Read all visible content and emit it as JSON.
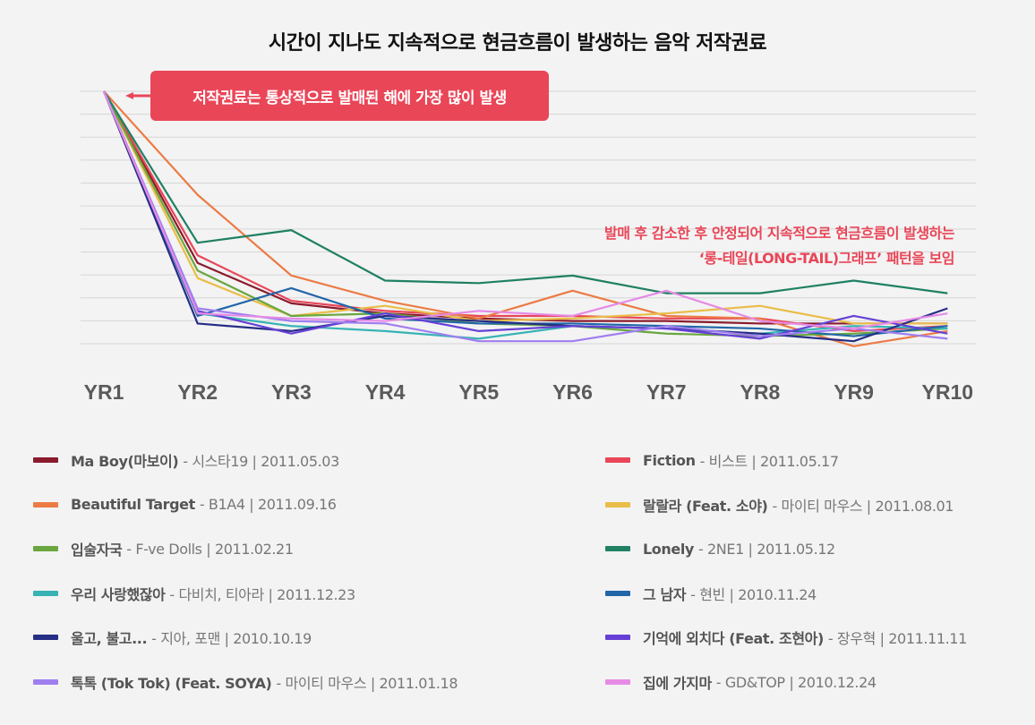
{
  "page": {
    "title": "시간이 지나도 지속적으로 현금흐름이 발생하는 음악 저작권료",
    "callout": "저작권료는 통상적으로 발매된 해에 가장 많이 발생",
    "annotation_line1": "발매 후 감소한 후 안정되어 지속적으로 현금흐름이 발생하는",
    "annotation_line2": "‘롱-테일(LONG-TAIL)그래프’ 패턴을 보임"
  },
  "colors": {
    "background": "#f3f3f3",
    "grid": "#d6d6d6",
    "accent": "#e94658",
    "axis_label": "#5a5a5a"
  },
  "chart_data": {
    "type": "line",
    "title": "시간이 지나도 지속적으로 현금흐름이 발생하는 음악 저작권료",
    "xlabel": "",
    "ylabel": "",
    "x": [
      "YR1",
      "YR2",
      "YR3",
      "YR4",
      "YR5",
      "YR6",
      "YR7",
      "YR8",
      "YR9",
      "YR10"
    ],
    "ylim": [
      0,
      100
    ],
    "y_gridlines": [
      0,
      9.09,
      18.18,
      27.27,
      36.36,
      45.45,
      54.55,
      63.64,
      72.73,
      81.82,
      90.91,
      100
    ],
    "legend_position": "bottom",
    "series": [
      {
        "name": "Ma Boy(마보이)",
        "detail": "- 시스타19 | 2011.05.03",
        "color": "#8b1a2c",
        "values": [
          100,
          32,
          16,
          12,
          10,
          9,
          9,
          8,
          8,
          8
        ]
      },
      {
        "name": "Fiction",
        "detail": "- 비스트 | 2011.05.17",
        "color": "#e94658",
        "values": [
          100,
          35,
          17,
          13,
          11,
          11,
          10,
          10,
          5,
          7
        ]
      },
      {
        "name": "Beautiful Target",
        "detail": "- B1A4 | 2011.09.16",
        "color": "#ec7b45",
        "values": [
          100,
          59,
          27,
          17,
          10,
          21,
          11,
          10,
          -1,
          5
        ]
      },
      {
        "name": "랄랄라 (Feat. 소야)",
        "detail": "- 마이티 마우스 | 2011.08.01",
        "color": "#e9bd47",
        "values": [
          100,
          26,
          11,
          15,
          9,
          10,
          12,
          15,
          8,
          8
        ]
      },
      {
        "name": "입술자국",
        "detail": "- F-ve Dolls | 2011.02.21",
        "color": "#6aa640",
        "values": [
          100,
          29,
          11,
          12,
          8,
          7,
          4,
          3,
          4,
          6
        ]
      },
      {
        "name": "Lonely",
        "detail": "- 2NE1 | 2011.05.12",
        "color": "#1f8063",
        "values": [
          100,
          40,
          45,
          25,
          24,
          27,
          20,
          20,
          25,
          20
        ]
      },
      {
        "name": "우리 사랑했잖아",
        "detail": "- 다비치, 티아라 | 2011.12.23",
        "color": "#38b3b5",
        "values": [
          100,
          12,
          7,
          5,
          2,
          7,
          6,
          4,
          7,
          6
        ]
      },
      {
        "name": "그 남자",
        "detail": "- 현빈 | 2010.11.24",
        "color": "#2166a8",
        "values": [
          100,
          11,
          22,
          10,
          8,
          8,
          7,
          6,
          3,
          7
        ]
      },
      {
        "name": "울고, 불고...",
        "detail": "- 지아, 포맨 | 2010.10.19",
        "color": "#262e85",
        "values": [
          100,
          8,
          5,
          11,
          9,
          7,
          6,
          4,
          1,
          14
        ]
      },
      {
        "name": "기억에 외치다 (Feat. 조현아)",
        "detail": "- 장우혁 | 2011.11.11",
        "color": "#6640d6",
        "values": [
          100,
          13,
          4,
          12,
          5,
          7,
          6,
          2,
          11,
          4
        ]
      },
      {
        "name": "톡톡 (Tok Tok) (Feat. SOYA)",
        "detail": "- 마이티 마우스 | 2011.01.18",
        "color": "#a07ef0",
        "values": [
          100,
          14,
          9,
          8,
          1,
          1,
          7,
          3,
          6,
          2
        ]
      },
      {
        "name": "집에 가지마",
        "detail": "- GD&TOP | 2010.12.24",
        "color": "#e58be6",
        "values": [
          100,
          12,
          10,
          9,
          13,
          11,
          21,
          9,
          6,
          12
        ]
      }
    ]
  }
}
